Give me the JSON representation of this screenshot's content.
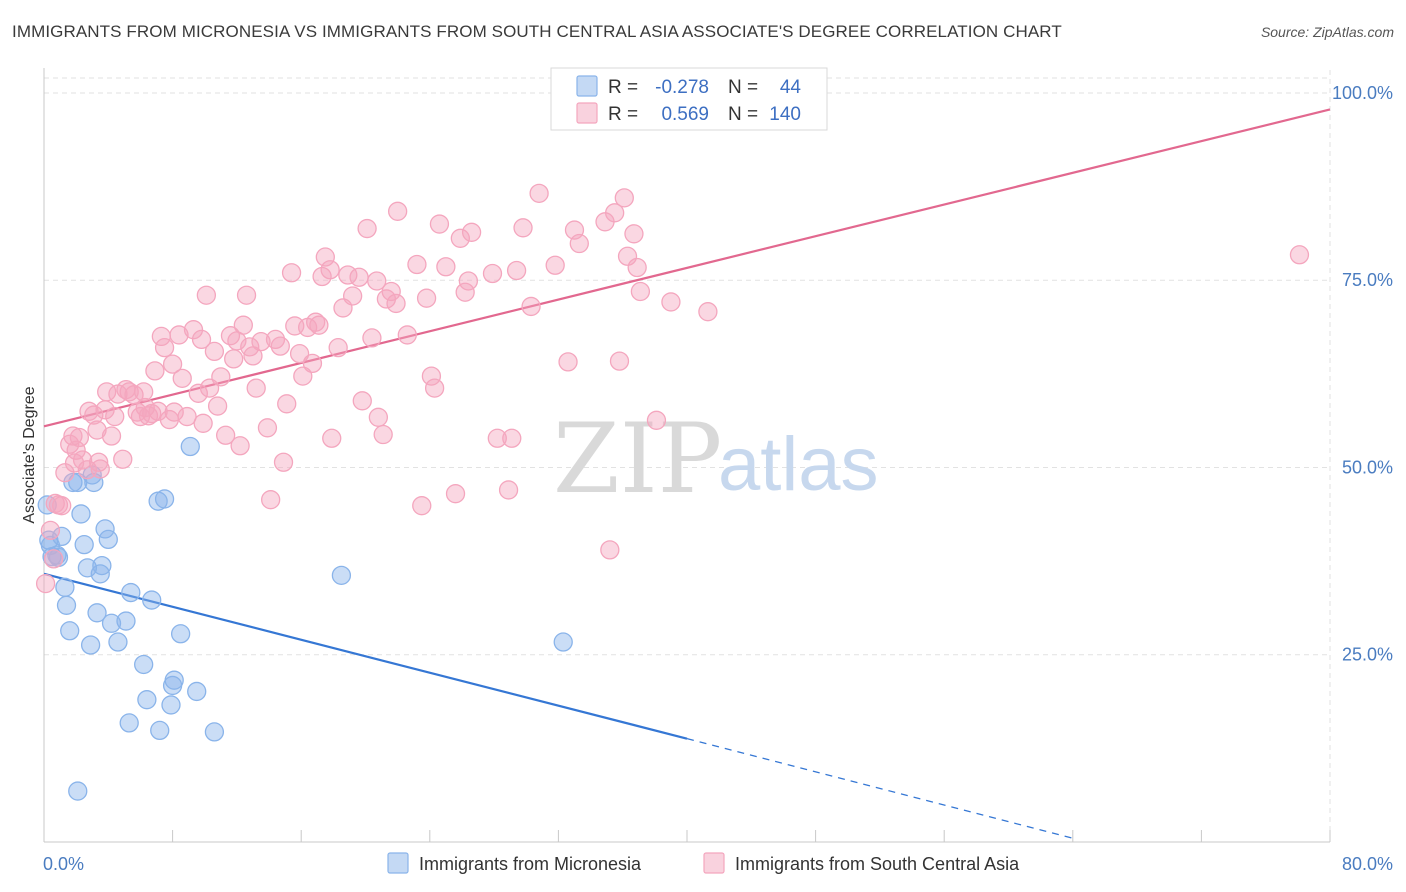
{
  "header": {
    "title": "IMMIGRANTS FROM MICRONESIA VS IMMIGRANTS FROM SOUTH CENTRAL ASIA ASSOCIATE'S DEGREE CORRELATION CHART",
    "source": "Source: ZipAtlas.com"
  },
  "watermark": {
    "part1": "ZIP",
    "part2": "atlas"
  },
  "stats": {
    "r_label": "R =",
    "n_label": "N =",
    "rows": [
      {
        "r": "-0.278",
        "n": "44",
        "color": "#8ab4ea"
      },
      {
        "r": "0.569",
        "n": "140",
        "color": "#f4a6be"
      }
    ]
  },
  "chart_data": {
    "type": "scatter",
    "xlabel": "",
    "ylabel": "Associate's Degree",
    "xlim": [
      0,
      80
    ],
    "ylim": [
      0,
      102
    ],
    "x_tick_labels": [
      {
        "value": 0,
        "label": "0.0%"
      },
      {
        "value": 80,
        "label": "80.0%"
      }
    ],
    "y_tick_labels": [
      {
        "value": 25,
        "label": "25.0%"
      },
      {
        "value": 50,
        "label": "50.0%"
      },
      {
        "value": 75,
        "label": "75.0%"
      },
      {
        "value": 100,
        "label": "100.0%"
      }
    ],
    "grid": true,
    "legend_position": "bottom",
    "series": [
      {
        "name": "Immigrants from Micronesia",
        "color": "#8ab4ea",
        "line_color": "#3577d4",
        "trend": {
          "x0": 0,
          "y0": 35.8,
          "x1": 40,
          "y1": 13.8,
          "dash_to_x": 64,
          "dash_to_y": 0.5
        },
        "points": [
          [
            0.2,
            45.0
          ],
          [
            0.3,
            40.3
          ],
          [
            0.5,
            38.1
          ],
          [
            0.8,
            38.3
          ],
          [
            1.1,
            40.8
          ],
          [
            1.3,
            34.0
          ],
          [
            1.4,
            31.6
          ],
          [
            1.6,
            28.2
          ],
          [
            1.8,
            48.0
          ],
          [
            2.1,
            48.0
          ],
          [
            2.3,
            43.8
          ],
          [
            2.5,
            39.7
          ],
          [
            2.7,
            36.6
          ],
          [
            2.9,
            26.3
          ],
          [
            3.0,
            49.0
          ],
          [
            3.1,
            48.0
          ],
          [
            3.3,
            30.6
          ],
          [
            3.5,
            35.8
          ],
          [
            3.6,
            36.9
          ],
          [
            3.8,
            41.8
          ],
          [
            4.0,
            40.4
          ],
          [
            4.2,
            29.2
          ],
          [
            4.6,
            26.7
          ],
          [
            5.1,
            29.5
          ],
          [
            5.3,
            15.9
          ],
          [
            5.4,
            33.3
          ],
          [
            6.2,
            23.7
          ],
          [
            6.4,
            19.0
          ],
          [
            6.7,
            32.3
          ],
          [
            7.1,
            45.5
          ],
          [
            7.2,
            14.9
          ],
          [
            7.5,
            45.8
          ],
          [
            7.9,
            18.3
          ],
          [
            8.0,
            20.9
          ],
          [
            8.1,
            21.6
          ],
          [
            8.5,
            27.8
          ],
          [
            9.5,
            20.1
          ],
          [
            9.1,
            52.8
          ],
          [
            10.6,
            14.7
          ],
          [
            18.5,
            35.6
          ],
          [
            32.3,
            26.7
          ],
          [
            2.1,
            6.8
          ],
          [
            0.9,
            38.0
          ],
          [
            0.4,
            39.6
          ]
        ]
      },
      {
        "name": "Immigrants from South Central Asia",
        "color": "#f4a6be",
        "line_color": "#e2688f",
        "trend": {
          "x0": 0,
          "y0": 55.5,
          "x1": 80,
          "y1": 97.8
        },
        "points": [
          [
            0.1,
            34.5
          ],
          [
            0.4,
            41.6
          ],
          [
            0.6,
            37.8
          ],
          [
            0.9,
            45.0
          ],
          [
            1.1,
            44.9
          ],
          [
            1.3,
            49.3
          ],
          [
            1.6,
            53.1
          ],
          [
            1.9,
            50.6
          ],
          [
            2.0,
            52.3
          ],
          [
            2.2,
            54.0
          ],
          [
            2.4,
            51.0
          ],
          [
            2.7,
            49.7
          ],
          [
            2.8,
            57.5
          ],
          [
            3.1,
            57.0
          ],
          [
            3.3,
            55.0
          ],
          [
            3.5,
            49.8
          ],
          [
            3.8,
            57.7
          ],
          [
            3.9,
            60.1
          ],
          [
            4.2,
            54.2
          ],
          [
            4.4,
            56.8
          ],
          [
            4.6,
            59.8
          ],
          [
            4.9,
            51.1
          ],
          [
            5.1,
            60.4
          ],
          [
            5.3,
            60.1
          ],
          [
            5.6,
            59.7
          ],
          [
            5.8,
            57.4
          ],
          [
            6.0,
            56.8
          ],
          [
            6.2,
            60.1
          ],
          [
            6.3,
            58.0
          ],
          [
            6.5,
            56.9
          ],
          [
            6.7,
            57.2
          ],
          [
            6.9,
            62.9
          ],
          [
            7.1,
            57.5
          ],
          [
            7.3,
            67.5
          ],
          [
            7.5,
            66.0
          ],
          [
            7.8,
            56.4
          ],
          [
            8.0,
            63.8
          ],
          [
            8.1,
            57.4
          ],
          [
            8.4,
            67.7
          ],
          [
            8.6,
            61.9
          ],
          [
            8.9,
            56.8
          ],
          [
            9.3,
            68.4
          ],
          [
            9.6,
            59.9
          ],
          [
            9.8,
            67.1
          ],
          [
            9.9,
            55.9
          ],
          [
            10.1,
            73.0
          ],
          [
            10.3,
            60.6
          ],
          [
            10.6,
            65.5
          ],
          [
            10.8,
            58.2
          ],
          [
            11.0,
            62.1
          ],
          [
            11.3,
            54.3
          ],
          [
            11.6,
            67.6
          ],
          [
            11.8,
            64.5
          ],
          [
            12.0,
            66.9
          ],
          [
            12.2,
            52.9
          ],
          [
            12.4,
            69.0
          ],
          [
            12.6,
            73.0
          ],
          [
            12.8,
            66.1
          ],
          [
            13.0,
            64.9
          ],
          [
            13.2,
            60.6
          ],
          [
            13.5,
            66.8
          ],
          [
            13.9,
            55.3
          ],
          [
            14.1,
            45.7
          ],
          [
            14.4,
            67.1
          ],
          [
            14.7,
            66.2
          ],
          [
            14.9,
            50.7
          ],
          [
            15.1,
            58.5
          ],
          [
            15.4,
            76.0
          ],
          [
            15.6,
            68.9
          ],
          [
            15.9,
            65.2
          ],
          [
            16.1,
            62.2
          ],
          [
            16.4,
            68.7
          ],
          [
            16.7,
            63.9
          ],
          [
            16.9,
            69.4
          ],
          [
            17.1,
            69.0
          ],
          [
            17.3,
            75.5
          ],
          [
            17.5,
            78.1
          ],
          [
            17.8,
            76.4
          ],
          [
            17.9,
            53.9
          ],
          [
            18.3,
            66.0
          ],
          [
            18.6,
            71.3
          ],
          [
            18.9,
            75.7
          ],
          [
            19.2,
            72.9
          ],
          [
            19.6,
            75.4
          ],
          [
            19.8,
            58.9
          ],
          [
            20.1,
            81.9
          ],
          [
            20.4,
            67.3
          ],
          [
            20.7,
            74.9
          ],
          [
            20.8,
            56.7
          ],
          [
            21.1,
            54.4
          ],
          [
            21.3,
            72.5
          ],
          [
            21.6,
            73.5
          ],
          [
            21.9,
            71.9
          ],
          [
            22.0,
            84.2
          ],
          [
            22.6,
            67.7
          ],
          [
            23.2,
            77.1
          ],
          [
            23.5,
            44.9
          ],
          [
            23.8,
            72.6
          ],
          [
            24.1,
            62.2
          ],
          [
            24.3,
            60.6
          ],
          [
            24.6,
            82.5
          ],
          [
            25.0,
            76.8
          ],
          [
            25.6,
            46.5
          ],
          [
            25.9,
            80.6
          ],
          [
            26.2,
            73.4
          ],
          [
            26.4,
            74.9
          ],
          [
            26.6,
            81.4
          ],
          [
            27.9,
            75.9
          ],
          [
            28.2,
            53.9
          ],
          [
            28.9,
            47.0
          ],
          [
            29.1,
            53.9
          ],
          [
            29.4,
            76.3
          ],
          [
            29.8,
            82.0
          ],
          [
            30.3,
            71.5
          ],
          [
            30.8,
            86.6
          ],
          [
            31.8,
            77.0
          ],
          [
            32.6,
            64.1
          ],
          [
            33.0,
            81.7
          ],
          [
            33.3,
            79.9
          ],
          [
            34.9,
            82.8
          ],
          [
            35.2,
            39.0
          ],
          [
            35.5,
            84.0
          ],
          [
            35.8,
            64.2
          ],
          [
            36.1,
            86.0
          ],
          [
            36.3,
            78.2
          ],
          [
            36.7,
            81.2
          ],
          [
            36.9,
            76.7
          ],
          [
            37.1,
            73.5
          ],
          [
            38.1,
            56.3
          ],
          [
            39.0,
            72.1
          ],
          [
            41.3,
            70.8
          ],
          [
            78.1,
            78.4
          ],
          [
            0.7,
            45.2
          ],
          [
            1.8,
            54.2
          ],
          [
            3.4,
            50.7
          ]
        ]
      }
    ]
  }
}
